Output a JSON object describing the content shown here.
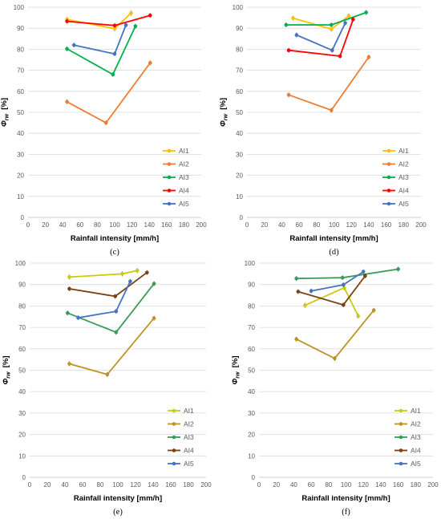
{
  "chart_data": [
    {
      "type": "line",
      "panel_label": "(c)",
      "xlabel": "Rainfall intensity [mm/h]",
      "ylabel_symbol": "Φ",
      "ylabel_sub": "rw",
      "ylabel_unit": "[%]",
      "xlim": [
        0,
        200
      ],
      "xticks": [
        0,
        20,
        40,
        60,
        80,
        100,
        120,
        140,
        160,
        180,
        200
      ],
      "ylim": [
        0,
        100
      ],
      "yticks": [
        0,
        10,
        20,
        30,
        40,
        50,
        60,
        70,
        80,
        90,
        100
      ],
      "grid": true,
      "legend_position": "bottom-right",
      "series": [
        {
          "name": "AI1",
          "color": "#ffc000",
          "x": [
            45,
            100,
            119
          ],
          "y": [
            94.2,
            89.8,
            97.2
          ]
        },
        {
          "name": "AI2",
          "color": "#ed7d31",
          "x": [
            45,
            90,
            141
          ],
          "y": [
            55,
            45,
            73.5
          ]
        },
        {
          "name": "AI3",
          "color": "#00b050",
          "x": [
            45,
            98,
            124
          ],
          "y": [
            80.2,
            68,
            91
          ]
        },
        {
          "name": "AI4",
          "color": "#ff0000",
          "x": [
            45,
            100,
            141
          ],
          "y": [
            93.3,
            91.3,
            96.1
          ]
        },
        {
          "name": "AI5",
          "color": "#4472c4",
          "x": [
            53,
            100,
            113
          ],
          "y": [
            82,
            77.8,
            91.5
          ]
        }
      ]
    },
    {
      "type": "line",
      "panel_label": "(d)",
      "xlabel": "Rainfall intensity [mm/h]",
      "ylabel_symbol": "Φ",
      "ylabel_sub": "rw",
      "ylabel_unit": "[%]",
      "xlim": [
        0,
        200
      ],
      "xticks": [
        0,
        20,
        40,
        60,
        80,
        100,
        120,
        140,
        160,
        180,
        200
      ],
      "ylim": [
        0,
        100
      ],
      "yticks": [
        0,
        10,
        20,
        30,
        40,
        50,
        60,
        70,
        80,
        90,
        100
      ],
      "grid": true,
      "legend_position": "bottom-right",
      "series": [
        {
          "name": "AI1",
          "color": "#ffc000",
          "x": [
            53,
            97,
            117
          ],
          "y": [
            94.8,
            89.6,
            95.8
          ]
        },
        {
          "name": "AI2",
          "color": "#ed7d31",
          "x": [
            48,
            97,
            140
          ],
          "y": [
            58.3,
            51,
            76.3
          ]
        },
        {
          "name": "AI3",
          "color": "#00b050",
          "x": [
            45,
            97,
            137
          ],
          "y": [
            91.6,
            91.6,
            97.5
          ]
        },
        {
          "name": "AI4",
          "color": "#ff0000",
          "x": [
            48,
            107,
            122
          ],
          "y": [
            79.5,
            76.7,
            94.2
          ]
        },
        {
          "name": "AI5",
          "color": "#4472c4",
          "x": [
            57,
            98,
            113
          ],
          "y": [
            86.8,
            79.5,
            92.5
          ]
        }
      ]
    },
    {
      "type": "line",
      "panel_label": "(e)",
      "xlabel": "Rainfall intensity [mm/h]",
      "ylabel_symbol": "Φ",
      "ylabel_sub": "rw",
      "ylabel_unit": "[%]",
      "xlim": [
        0,
        200
      ],
      "xticks": [
        0,
        20,
        40,
        60,
        80,
        100,
        120,
        140,
        160,
        180,
        200
      ],
      "ylim": [
        0,
        100
      ],
      "yticks": [
        0,
        10,
        20,
        30,
        40,
        50,
        60,
        70,
        80,
        90,
        100
      ],
      "grid": true,
      "legend_position": "bottom-right",
      "series": [
        {
          "name": "AI1",
          "color": "#c9cc0e",
          "x": [
            45,
            105,
            122
          ],
          "y": [
            93.5,
            95,
            96.5
          ]
        },
        {
          "name": "AI2",
          "color": "#bb9424",
          "x": [
            45,
            88,
            141
          ],
          "y": [
            53,
            48,
            74.3
          ]
        },
        {
          "name": "AI3",
          "color": "#3b9a57",
          "x": [
            43,
            98,
            141
          ],
          "y": [
            76.7,
            67.7,
            90.4
          ]
        },
        {
          "name": "AI4",
          "color": "#7b3f12",
          "x": [
            45,
            97,
            133
          ],
          "y": [
            88,
            84.5,
            95.6
          ]
        },
        {
          "name": "AI5",
          "color": "#4472c4",
          "x": [
            55,
            98,
            114
          ],
          "y": [
            74.5,
            77.5,
            91.5
          ]
        }
      ]
    },
    {
      "type": "line",
      "panel_label": "(f)",
      "xlabel": "Rainfall intensity [mm/h]",
      "ylabel_symbol": "Φ",
      "ylabel_sub": "rw",
      "ylabel_unit": "[%]",
      "xlim": [
        0,
        200
      ],
      "xticks": [
        0,
        20,
        40,
        60,
        80,
        100,
        120,
        140,
        160,
        180,
        200
      ],
      "ylim": [
        0,
        100
      ],
      "yticks": [
        0,
        10,
        20,
        30,
        40,
        50,
        60,
        70,
        80,
        90,
        100
      ],
      "grid": true,
      "legend_position": "bottom-right",
      "series": [
        {
          "name": "AI1",
          "color": "#c9cc0e",
          "x": [
            53,
            98,
            114
          ],
          "y": [
            80.3,
            88.5,
            75.3
          ]
        },
        {
          "name": "AI2",
          "color": "#bb9424",
          "x": [
            43,
            87,
            132
          ],
          "y": [
            64.5,
            55.5,
            78
          ]
        },
        {
          "name": "AI3",
          "color": "#3b9a57",
          "x": [
            43,
            96,
            160
          ],
          "y": [
            92.8,
            93.2,
            97.2
          ]
        },
        {
          "name": "AI4",
          "color": "#7b3f12",
          "x": [
            45,
            97,
            122
          ],
          "y": [
            86.7,
            80.5,
            94
          ]
        },
        {
          "name": "AI5",
          "color": "#4472c4",
          "x": [
            60,
            97,
            120
          ],
          "y": [
            87,
            89.9,
            96
          ]
        }
      ]
    }
  ]
}
